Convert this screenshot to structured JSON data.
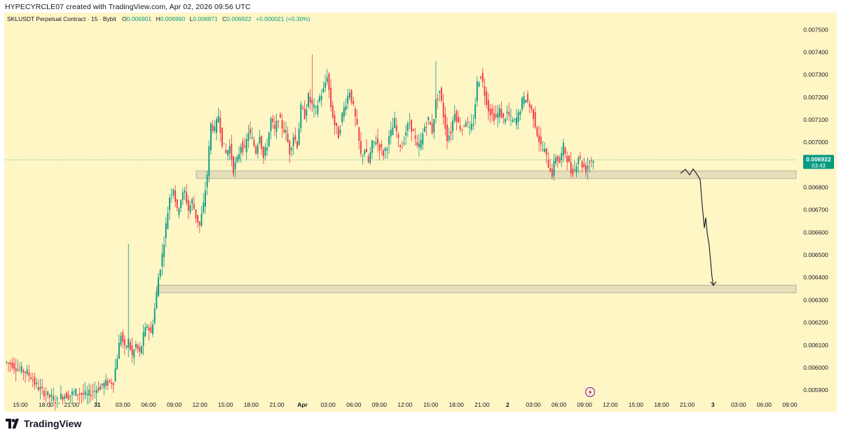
{
  "header": {
    "caption": "HYPECYRCLE07 created with TradingView.com, Apr 02, 2026 09:56 UTC"
  },
  "symbol_bar": {
    "symbol": "SKLUSDT Perpetual Contract · 15 · Bybit",
    "o_label": "O",
    "o_value": "0.006901",
    "h_label": "H",
    "h_value": "0.006990",
    "l_label": "L",
    "l_value": "0.006871",
    "c_label": "C",
    "c_value": "0.006922",
    "change": "+0.000021 (+0.30%)"
  },
  "price_tag": {
    "price": "0.006922",
    "countdown": "03:43"
  },
  "footer": {
    "brand": "TradingView"
  },
  "colors": {
    "background": "#fff6c6",
    "up": "#089981",
    "down": "#f23645",
    "zone_fill": "#e6dfb9",
    "zone_border": "#a8a496",
    "last_price": "#089981",
    "drawing": "#131722",
    "lightning_icon": "#9c27b0"
  },
  "chart_data": {
    "type": "candlestick",
    "symbol": "SKLUSDT",
    "interval": "15",
    "exchange": "Bybit",
    "y_ticks": [
      "0.007500",
      "0.007400",
      "0.007300",
      "0.007200",
      "0.007100",
      "0.007000",
      "0.006900",
      "0.006800",
      "0.006700",
      "0.006600",
      "0.006500",
      "0.006400",
      "0.006300",
      "0.006200",
      "0.006100",
      "0.006000",
      "0.005900"
    ],
    "ylim": [
      0.00586,
      0.00756
    ],
    "x_ticks": [
      "15:00",
      "18:00",
      "21:00",
      "31",
      "03:00",
      "06:00",
      "09:00",
      "12:00",
      "15:00",
      "18:00",
      "21:00",
      "Apr",
      "03:00",
      "06:00",
      "09:00",
      "12:00",
      "15:00",
      "18:00",
      "21:00",
      "2",
      "03:00",
      "06:00",
      "09:00",
      "12:00",
      "15:00",
      "18:00",
      "21:00",
      "3",
      "03:00",
      "06:00",
      "09:00"
    ],
    "x_bold": [
      "31",
      "Apr",
      "2",
      "3"
    ],
    "last_price": 0.006922,
    "zones": [
      {
        "low": 0.006839,
        "high": 0.006873
      },
      {
        "low": 0.006332,
        "high": 0.006366
      }
    ],
    "price_path": [
      [
        0.006025,
        0.00602,
        0.006015,
        0.006,
        0.00599,
        0.005985,
        0.005975,
        0.00596,
        0.00593,
        0.00591,
        0.005895,
        0.005885,
        0.00587,
        0.00586,
        0.00585,
        0.00587,
        0.00588,
        0.005875,
        0.005885,
        0.00589,
        0.005885,
        0.00588,
        0.005875,
        0.00589,
        0.0059,
        0.00591,
        0.00592,
        0.00593,
        0.005935
      ],
      [
        0.00594,
        0.00605,
        0.00615,
        0.00608,
        0.00612,
        0.00605,
        0.0061,
        0.00606,
        0.00614,
        0.00619,
        0.00615,
        0.00626,
        0.0064,
        0.0065,
        0.00663,
        0.00676,
        0.0068,
        0.00669,
        0.00675,
        0.00678,
        0.0067,
        0.00674,
        0.00667,
        0.00663,
        0.00672
      ],
      [
        0.00686,
        0.00708,
        0.00705,
        0.00712,
        0.007,
        0.00695,
        0.00698,
        0.00688,
        0.00692,
        0.00699,
        0.00696,
        0.00705,
        0.00701,
        0.00696,
        0.00704,
        0.00693,
        0.00699,
        0.0071,
        0.00705,
        0.00711,
        0.00707,
        0.00704,
        0.00696,
        0.00703,
        0.00699,
        0.00715,
        0.00712,
        0.0072,
        0.00716,
        0.00714
      ],
      [
        0.0072,
        0.00723,
        0.0073,
        0.00716,
        0.00708,
        0.00703,
        0.00712,
        0.00718,
        0.00723,
        0.00715,
        0.00706,
        0.00694,
        0.00697,
        0.00691,
        0.00699,
        0.00701,
        0.00698,
        0.00695,
        0.00699,
        0.00704,
        0.00709,
        0.007,
        0.00698,
        0.00705,
        0.00709,
        0.00704,
        0.00697,
        0.007,
        0.00707,
        0.0071
      ],
      [
        0.00705,
        0.00718,
        0.00723,
        0.00712,
        0.00702,
        0.00705,
        0.00714,
        0.00708,
        0.00706,
        0.0071,
        0.00705,
        0.00709,
        0.00726,
        0.0073,
        0.00722,
        0.00715,
        0.00712,
        0.00711,
        0.00714,
        0.0071,
        0.00713,
        0.0071,
        0.00709,
        0.00712,
        0.00718,
        0.0072,
        0.00716,
        0.00712,
        0.00704,
        0.00698
      ],
      [
        0.00696,
        0.0069,
        0.00686,
        0.00694,
        0.00691,
        0.00698,
        0.00693,
        0.00687,
        0.00688,
        0.00694,
        0.0069,
        0.00688,
        0.00692,
        0.006922
      ]
    ],
    "projection_path": [
      0.006862,
      0.00688,
      0.006855,
      0.006882,
      0.00686,
      0.006835,
      0.00672,
      0.00662,
      0.006665,
      0.0066,
      0.00654,
      0.00647,
      0.0064,
      0.006365
    ],
    "x_range": [
      0,
      330
    ]
  }
}
